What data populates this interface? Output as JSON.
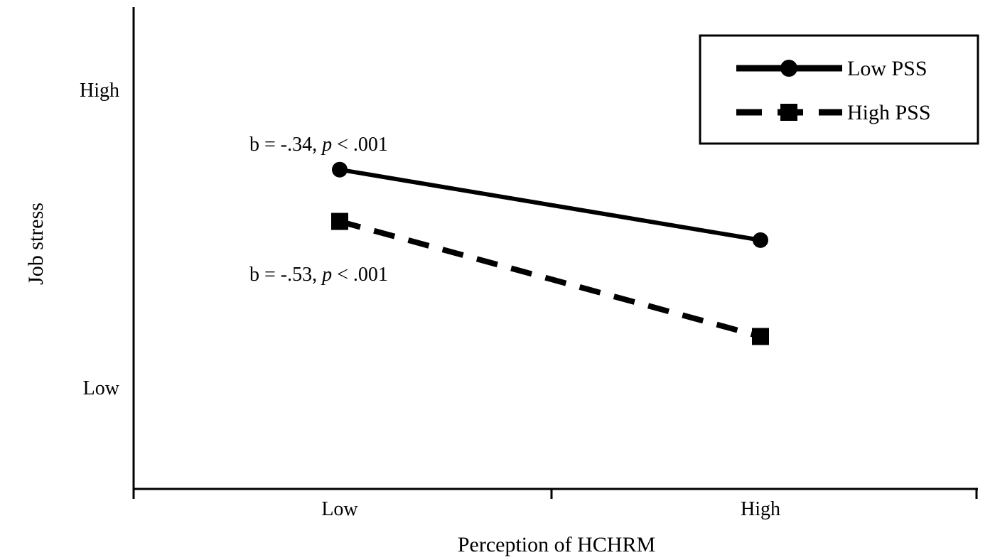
{
  "chart_data": {
    "type": "line",
    "x": [
      "Low",
      "High"
    ],
    "xlabel": "Perception of HCHRM",
    "ylabel": "Job stress",
    "y_tick_labels": [
      "High",
      "Low"
    ],
    "y_tick_values": [
      4.0,
      2.0
    ],
    "ylim": [
      1.2,
      4.55
    ],
    "series": [
      {
        "name": "Low PSS",
        "values": [
          3.42,
          2.93
        ],
        "marker": "circle",
        "line_style": "solid",
        "color": "#000000"
      },
      {
        "name": "High PSS",
        "values": [
          3.06,
          2.26
        ],
        "marker": "square",
        "line_style": "dashed",
        "color": "#000000"
      }
    ],
    "annotations": [
      {
        "prefix": "b = -.34, ",
        "italic": "p",
        "suffix": " < .001"
      },
      {
        "prefix": "b = -.53, ",
        "italic": "p",
        "suffix": " < .001"
      }
    ],
    "legend_position": "top-right",
    "grid": false
  }
}
